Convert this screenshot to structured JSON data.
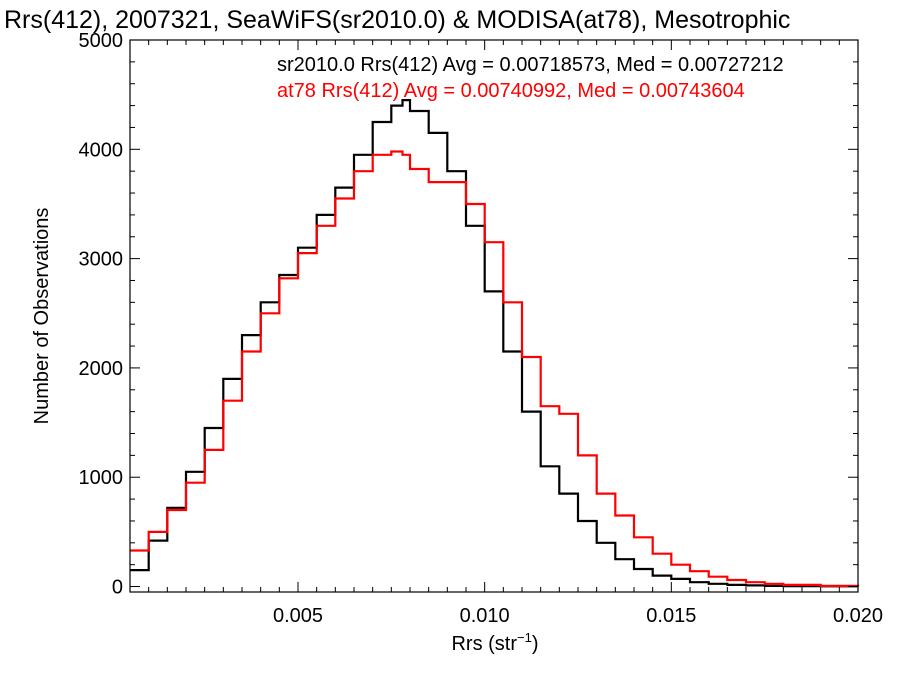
{
  "chart_data": {
    "type": "line",
    "title": "Rrs(412), 2007321, SeaWiFS(sr2010.0) & MODISA(at78), Mesotrophic",
    "xlabel": "Rrs (str",
    "xlabel_sup": "−1",
    "xlabel_end": ")",
    "ylabel": "Number of Observations",
    "xlim": [
      0.0005,
      0.02
    ],
    "ylim": [
      -50,
      5000
    ],
    "x_ticks": [
      0.005,
      0.01,
      0.015,
      0.02
    ],
    "x_tick_labels": [
      "0.005",
      "0.010",
      "0.015",
      "0.020"
    ],
    "y_ticks": [
      0,
      1000,
      2000,
      3000,
      4000,
      5000
    ],
    "y_tick_labels": [
      "0",
      "1000",
      "2000",
      "3000",
      "4000",
      "5000"
    ],
    "grid": false,
    "legend_placement": "top",
    "series": [
      {
        "name": "sr2010.0",
        "legend_text": "sr2010.0 Rrs(412) Avg = 0.00718573, Med = 0.00727212",
        "color": "#000000",
        "x": [
          0.0005,
          0.001,
          0.0015,
          0.002,
          0.0025,
          0.003,
          0.0035,
          0.004,
          0.0045,
          0.005,
          0.0055,
          0.006,
          0.0065,
          0.007,
          0.0075,
          0.0078,
          0.008,
          0.0085,
          0.009,
          0.0095,
          0.01,
          0.0105,
          0.011,
          0.0115,
          0.012,
          0.0125,
          0.013,
          0.0135,
          0.014,
          0.0145,
          0.015,
          0.0155,
          0.016,
          0.0165,
          0.017,
          0.0175,
          0.018,
          0.019,
          0.02
        ],
        "values": [
          150,
          420,
          720,
          1050,
          1450,
          1900,
          2300,
          2600,
          2850,
          3100,
          3400,
          3650,
          3950,
          4250,
          4400,
          4450,
          4350,
          4150,
          3800,
          3300,
          2700,
          2150,
          1600,
          1100,
          850,
          600,
          400,
          250,
          160,
          100,
          70,
          40,
          25,
          15,
          10,
          6,
          4,
          2,
          1
        ]
      },
      {
        "name": "at78",
        "legend_text": "at78 Rrs(412) Avg = 0.00740992, Med = 0.00743604",
        "color": "#ff0000",
        "x": [
          0.0005,
          0.001,
          0.0015,
          0.002,
          0.0025,
          0.003,
          0.0035,
          0.004,
          0.0045,
          0.005,
          0.0055,
          0.006,
          0.0065,
          0.007,
          0.0075,
          0.0078,
          0.008,
          0.0085,
          0.009,
          0.0095,
          0.01,
          0.0105,
          0.011,
          0.0115,
          0.012,
          0.0125,
          0.013,
          0.0135,
          0.014,
          0.0145,
          0.015,
          0.0155,
          0.016,
          0.0165,
          0.017,
          0.0175,
          0.018,
          0.019,
          0.02
        ],
        "values": [
          330,
          500,
          700,
          950,
          1250,
          1700,
          2150,
          2500,
          2820,
          3050,
          3300,
          3550,
          3800,
          3950,
          3980,
          3950,
          3820,
          3700,
          3700,
          3500,
          3150,
          2600,
          2100,
          1650,
          1580,
          1200,
          850,
          650,
          450,
          300,
          200,
          140,
          90,
          60,
          40,
          25,
          15,
          6,
          2
        ]
      }
    ]
  }
}
